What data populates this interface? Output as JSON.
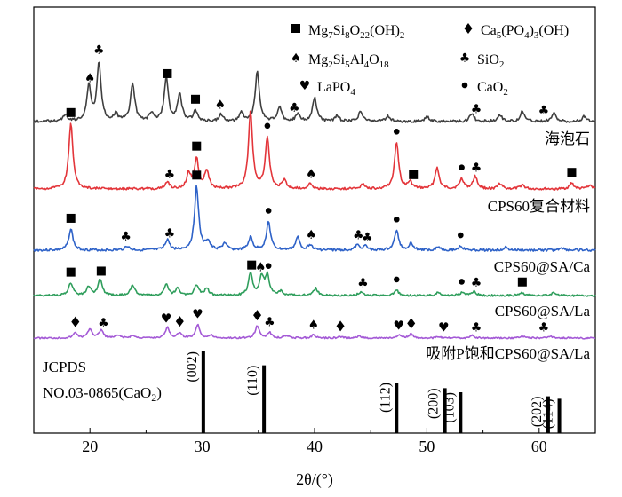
{
  "chart_data": {
    "type": "line",
    "xlabel": "2θ/(°)",
    "xlim": [
      15,
      65
    ],
    "x_ticks": [
      "20",
      "30",
      "40",
      "50",
      "60"
    ],
    "x_tick_values": [
      20,
      30,
      40,
      50,
      60
    ],
    "legend": [
      {
        "symbol": "square",
        "label": "Mg7Si8O22(OH)2",
        "display": [
          [
            "Mg",
            ""
          ],
          [
            "7",
            "sub"
          ],
          [
            "Si",
            ""
          ],
          [
            "8",
            "sub"
          ],
          [
            "O",
            ""
          ],
          [
            "22",
            "sub"
          ],
          [
            "(OH)",
            ""
          ],
          [
            "2",
            "sub"
          ]
        ]
      },
      {
        "symbol": "diamond",
        "label": "Ca5(PO4)3(OH)",
        "display": [
          [
            "Ca",
            ""
          ],
          [
            "5",
            "sub"
          ],
          [
            "(PO",
            ""
          ],
          [
            "4",
            "sub"
          ],
          [
            ")",
            ""
          ],
          [
            "3",
            "sub"
          ],
          [
            "(OH)",
            ""
          ]
        ]
      },
      {
        "symbol": "spade",
        "label": "Mg2Si5Al4O18",
        "display": [
          [
            "Mg",
            ""
          ],
          [
            "2",
            "sub"
          ],
          [
            "Si",
            ""
          ],
          [
            "5",
            "sub"
          ],
          [
            "Al",
            ""
          ],
          [
            "4",
            "sub"
          ],
          [
            "O",
            ""
          ],
          [
            "18",
            "sub"
          ]
        ]
      },
      {
        "symbol": "club",
        "label": "SiO2",
        "display": [
          [
            "SiO",
            ""
          ],
          [
            "2",
            "sub"
          ]
        ]
      },
      {
        "symbol": "heart",
        "label": "LaPO4",
        "display": [
          [
            "LaPO",
            ""
          ],
          [
            "4",
            "sub"
          ]
        ]
      },
      {
        "symbol": "dot",
        "label": "CaO2",
        "display": [
          [
            "CaO",
            ""
          ],
          [
            "2",
            "sub"
          ]
        ]
      }
    ],
    "series": [
      {
        "name": "海泡石",
        "color": "#3f3f3f",
        "peaks": [
          [
            17.8,
            0.1
          ],
          [
            19.9,
            0.5
          ],
          [
            20.8,
            0.85
          ],
          [
            22.3,
            0.1
          ],
          [
            23.8,
            0.55
          ],
          [
            25.5,
            0.12
          ],
          [
            26.8,
            0.62
          ],
          [
            28.0,
            0.4
          ],
          [
            29.4,
            0.15
          ],
          [
            31.7,
            0.1
          ],
          [
            33.5,
            0.12
          ],
          [
            34.9,
            0.72
          ],
          [
            36.9,
            0.2
          ],
          [
            38.5,
            0.1
          ],
          [
            40.0,
            0.35
          ],
          [
            42.0,
            0.08
          ],
          [
            44.1,
            0.15
          ],
          [
            46.5,
            0.08
          ],
          [
            50.0,
            0.08
          ],
          [
            54.0,
            0.12
          ],
          [
            56.5,
            0.1
          ],
          [
            58.5,
            0.15
          ],
          [
            61.3,
            0.12
          ],
          [
            64.0,
            0.08
          ]
        ],
        "markers": [
          [
            20.0,
            "spade"
          ],
          [
            20.8,
            "club"
          ],
          [
            26.9,
            "square"
          ],
          [
            29.4,
            "square"
          ],
          [
            31.6,
            "spade"
          ],
          [
            38.2,
            "club"
          ],
          [
            54.4,
            "club"
          ],
          [
            60.4,
            "club"
          ]
        ]
      },
      {
        "name": "CPS60复合材料",
        "color": "#e3353a",
        "peaks": [
          [
            18.3,
            0.78
          ],
          [
            26.9,
            0.08
          ],
          [
            28.8,
            0.18
          ],
          [
            29.5,
            0.35
          ],
          [
            30.4,
            0.22
          ],
          [
            34.3,
            0.92
          ],
          [
            35.8,
            0.6
          ],
          [
            37.3,
            0.1
          ],
          [
            39.6,
            0.06
          ],
          [
            44.3,
            0.06
          ],
          [
            47.3,
            0.55
          ],
          [
            48.5,
            0.08
          ],
          [
            50.9,
            0.25
          ],
          [
            53.1,
            0.12
          ],
          [
            54.3,
            0.15
          ],
          [
            56.5,
            0.06
          ],
          [
            58.5,
            0.05
          ],
          [
            62.9,
            0.07
          ],
          [
            64.5,
            0.05
          ]
        ],
        "markers": [
          [
            18.3,
            "square"
          ],
          [
            27.1,
            "club"
          ],
          [
            29.5,
            "square"
          ],
          [
            35.8,
            "dot"
          ],
          [
            39.7,
            "spade"
          ],
          [
            47.3,
            "dot"
          ],
          [
            48.8,
            "square"
          ],
          [
            53.1,
            "dot"
          ],
          [
            54.4,
            "club"
          ],
          [
            62.9,
            "square"
          ]
        ]
      },
      {
        "name": "CPS60@SA/Ca",
        "color": "#2e62c8",
        "peaks": [
          [
            18.3,
            0.3
          ],
          [
            23.3,
            0.06
          ],
          [
            26.9,
            0.15
          ],
          [
            29.5,
            0.9
          ],
          [
            30.5,
            0.12
          ],
          [
            32.0,
            0.1
          ],
          [
            34.3,
            0.18
          ],
          [
            35.9,
            0.4
          ],
          [
            38.5,
            0.18
          ],
          [
            39.6,
            0.08
          ],
          [
            43.8,
            0.07
          ],
          [
            44.5,
            0.06
          ],
          [
            47.3,
            0.28
          ],
          [
            48.6,
            0.1
          ],
          [
            51.0,
            0.05
          ],
          [
            53.0,
            0.06
          ],
          [
            57.0,
            0.04
          ],
          [
            62.0,
            0.04
          ]
        ],
        "markers": [
          [
            18.3,
            "square"
          ],
          [
            23.2,
            "club"
          ],
          [
            27.1,
            "club"
          ],
          [
            29.5,
            "square"
          ],
          [
            35.9,
            "dot"
          ],
          [
            39.7,
            "spade"
          ],
          [
            43.9,
            "club"
          ],
          [
            44.7,
            "club"
          ],
          [
            47.3,
            "dot"
          ],
          [
            53.0,
            "dot"
          ]
        ]
      },
      {
        "name": "CPS60@SA/La",
        "color": "#2f9e5c",
        "peaks": [
          [
            18.3,
            0.35
          ],
          [
            19.9,
            0.25
          ],
          [
            20.9,
            0.45
          ],
          [
            23.8,
            0.3
          ],
          [
            26.8,
            0.3
          ],
          [
            27.8,
            0.2
          ],
          [
            29.5,
            0.3
          ],
          [
            30.4,
            0.2
          ],
          [
            34.3,
            0.62
          ],
          [
            35.3,
            0.5
          ],
          [
            35.8,
            0.55
          ],
          [
            37.0,
            0.12
          ],
          [
            40.1,
            0.2
          ],
          [
            44.1,
            0.1
          ],
          [
            47.3,
            0.15
          ],
          [
            51.0,
            0.08
          ],
          [
            53.2,
            0.1
          ],
          [
            54.2,
            0.12
          ],
          [
            58.5,
            0.08
          ],
          [
            61.3,
            0.08
          ]
        ],
        "markers": [
          [
            18.3,
            "square"
          ],
          [
            21.0,
            "square"
          ],
          [
            34.4,
            "square"
          ],
          [
            35.2,
            "spade"
          ],
          [
            35.9,
            "dot"
          ],
          [
            44.3,
            "club"
          ],
          [
            47.3,
            "dot"
          ],
          [
            53.1,
            "dot"
          ],
          [
            54.4,
            "club"
          ],
          [
            58.5,
            "square"
          ]
        ]
      },
      {
        "name": "吸附P饱和CPS60@SA/La",
        "color": "#a45ad6",
        "peaks": [
          [
            18.7,
            0.2
          ],
          [
            20.0,
            0.35
          ],
          [
            21.0,
            0.3
          ],
          [
            22.5,
            0.1
          ],
          [
            23.8,
            0.1
          ],
          [
            26.9,
            0.4
          ],
          [
            28.0,
            0.2
          ],
          [
            29.6,
            0.5
          ],
          [
            30.8,
            0.1
          ],
          [
            34.9,
            0.45
          ],
          [
            36.0,
            0.2
          ],
          [
            37.5,
            0.1
          ],
          [
            39.9,
            0.12
          ],
          [
            42.3,
            0.05
          ],
          [
            44.0,
            0.08
          ],
          [
            47.6,
            0.1
          ],
          [
            48.6,
            0.15
          ],
          [
            51.0,
            0.05
          ],
          [
            54.0,
            0.1
          ],
          [
            58.5,
            0.08
          ],
          [
            61.0,
            0.08
          ]
        ],
        "markers": [
          [
            18.7,
            "diamond"
          ],
          [
            21.2,
            "club"
          ],
          [
            26.8,
            "heart"
          ],
          [
            28.0,
            "diamond"
          ],
          [
            29.6,
            "heart"
          ],
          [
            34.9,
            "diamond"
          ],
          [
            36.0,
            "club"
          ],
          [
            39.9,
            "spade"
          ],
          [
            42.3,
            "diamond"
          ],
          [
            47.5,
            "heart"
          ],
          [
            48.6,
            "diamond"
          ],
          [
            51.5,
            "heart"
          ],
          [
            54.4,
            "club"
          ],
          [
            60.4,
            "club"
          ]
        ]
      }
    ],
    "reference": {
      "label_lines": [
        "JCPDS",
        "NO.03-0865(CaO",
        "2",
        ")"
      ],
      "bars": [
        {
          "x": 30.1,
          "height": 1.0,
          "hkl": "(002)"
        },
        {
          "x": 35.5,
          "height": 0.83,
          "hkl": "(110)"
        },
        {
          "x": 47.3,
          "height": 0.62,
          "hkl": "(112)"
        },
        {
          "x": 51.6,
          "height": 0.55,
          "hkl": "(200)"
        },
        {
          "x": 53.0,
          "height": 0.5,
          "hkl": "(103)"
        },
        {
          "x": 60.8,
          "height": 0.45,
          "hkl": "(202)"
        },
        {
          "x": 61.8,
          "height": 0.42,
          "hkl": "(114)"
        }
      ]
    }
  }
}
